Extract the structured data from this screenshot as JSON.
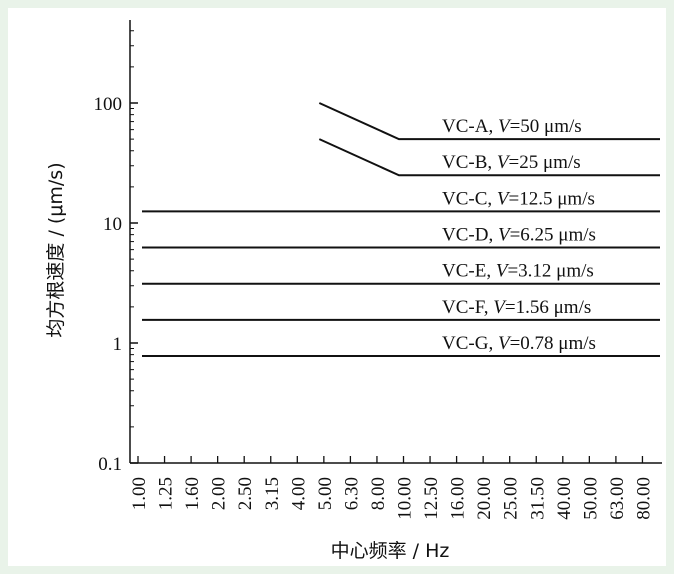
{
  "chart_data": {
    "type": "line",
    "xlabel": "中心频率 / Hz",
    "ylabel": "均方根速度 / (μm/s)",
    "y_scale": "log",
    "ylim": [
      0.1,
      1000
    ],
    "y_ticks": [
      "0.1",
      "1",
      "10",
      "100"
    ],
    "categories": [
      "1.00",
      "1.25",
      "1.60",
      "2.00",
      "2.50",
      "3.15",
      "4.00",
      "5.00",
      "6.30",
      "8.00",
      "10.00",
      "12.50",
      "16.00",
      "20.00",
      "25.00",
      "31.50",
      "40.00",
      "50.00",
      "63.00",
      "80.00"
    ],
    "series": [
      {
        "name": "VC-A",
        "label_prefix": "VC-A, ",
        "label_var": "V",
        "label_value": "=50 μm/s",
        "x": [
          "4.00",
          "8.00",
          "80.00"
        ],
        "y": [
          100,
          50,
          50
        ]
      },
      {
        "name": "VC-B",
        "label_prefix": "VC-B, ",
        "label_var": "V",
        "label_value": "=25 μm/s",
        "x": [
          "4.00",
          "8.00",
          "80.00"
        ],
        "y": [
          50,
          25,
          25
        ]
      },
      {
        "name": "VC-C",
        "label_prefix": "VC-C, ",
        "label_var": "V",
        "label_value": "=12.5 μm/s",
        "x": [
          "1.00",
          "80.00"
        ],
        "y": [
          12.5,
          12.5
        ]
      },
      {
        "name": "VC-D",
        "label_prefix": "VC-D, ",
        "label_var": "V",
        "label_value": "=6.25 μm/s",
        "x": [
          "1.00",
          "80.00"
        ],
        "y": [
          6.25,
          6.25
        ]
      },
      {
        "name": "VC-E",
        "label_prefix": "VC-E, ",
        "label_var": "V",
        "label_value": "=3.12 μm/s",
        "x": [
          "1.00",
          "80.00"
        ],
        "y": [
          3.12,
          3.12
        ]
      },
      {
        "name": "VC-F",
        "label_prefix": "VC-F, ",
        "label_var": "V",
        "label_value": "=1.56 μm/s",
        "x": [
          "1.00",
          "80.00"
        ],
        "y": [
          1.56,
          1.56
        ]
      },
      {
        "name": "VC-G",
        "label_prefix": "VC-G, ",
        "label_var": "V",
        "label_value": "=0.78 μm/s",
        "x": [
          "1.00",
          "80.00"
        ],
        "y": [
          0.78,
          0.78
        ]
      }
    ],
    "grid": false,
    "legend": "none"
  }
}
